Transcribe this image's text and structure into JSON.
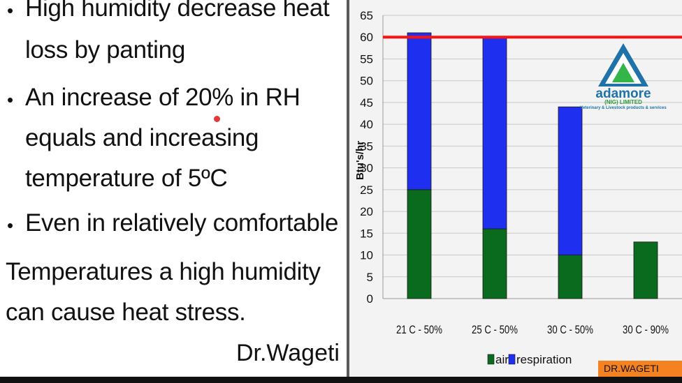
{
  "slide": {
    "bullets": [
      {
        "lines": [
          "High humidity decrease heat",
          "loss by panting"
        ],
        "bullet": true
      },
      {
        "lines": [
          "An increase of 20% in RH",
          "equals and increasing",
          "temperature of 5ºC"
        ],
        "bullet": true
      },
      {
        "lines": [
          "Even in relatively comfortable"
        ],
        "bullet": true
      },
      {
        "lines": [
          "Temperatures a high humidity",
          "can cause heat stress."
        ],
        "bullet": false
      }
    ],
    "author": "Dr.Wageti"
  },
  "watermark": {
    "brand": "adamore",
    "sub": "(NIG) LIMITED",
    "tagline": "Veterinary & Livestock products & services",
    "icon": "triangle-logo-icon"
  },
  "badge": {
    "text": "DR.WAGETI",
    "color": "#f58220"
  },
  "colors": {
    "air": "#0a6b1e",
    "respiration": "#1f2ff0",
    "threshold": "#ff1010"
  },
  "chart_data": {
    "type": "bar",
    "stacked": true,
    "categories": [
      "21 C - 50%",
      "25 C - 50%",
      "30 C - 50%",
      "30 C - 90%"
    ],
    "series": [
      {
        "name": "air",
        "values": [
          25,
          16,
          10,
          13
        ]
      },
      {
        "name": "respiration",
        "values": [
          36,
          44,
          34,
          0
        ]
      }
    ],
    "ylabel": "Btu's/hr",
    "xlabel": "",
    "ylim": [
      0,
      65
    ],
    "yticks": [
      0,
      5,
      10,
      15,
      20,
      25,
      30,
      35,
      40,
      45,
      50,
      55,
      60,
      65
    ],
    "reference_line": {
      "y": 60
    },
    "legend": {
      "position": "bottom",
      "entries": [
        "air",
        "respiration"
      ]
    },
    "grid": true
  }
}
